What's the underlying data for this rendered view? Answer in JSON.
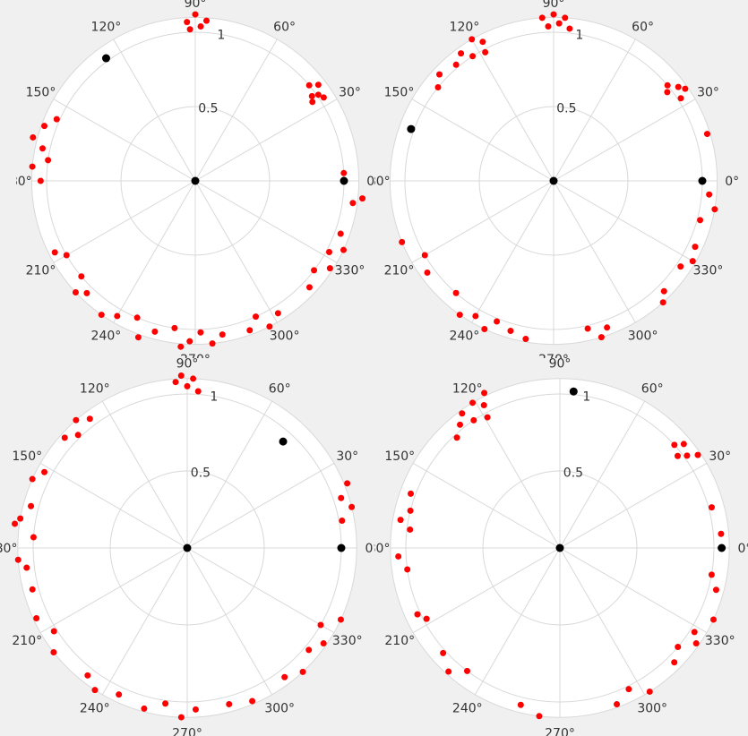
{
  "colors": {
    "background": "#f0f0f0",
    "plot_face": "#ffffff",
    "grid": "#d8d8d8",
    "text": "#333333",
    "cluster_points": "#ff0000",
    "centroid_points": "#000000"
  },
  "chart_data": [
    {
      "type": "scatter",
      "projection": "polar",
      "rlim": [
        0,
        1.1
      ],
      "r_ticks": [
        {
          "value": 0.5,
          "label": "0.5"
        },
        {
          "value": 1,
          "label": "1"
        }
      ],
      "theta_ticks": [
        {
          "deg": 0,
          "label": "0°"
        },
        {
          "deg": 30,
          "label": "30°"
        },
        {
          "deg": 60,
          "label": "60°"
        },
        {
          "deg": 90,
          "label": "90°"
        },
        {
          "deg": 120,
          "label": "120°"
        },
        {
          "deg": 150,
          "label": "150°"
        },
        {
          "deg": 180,
          "label": "180°"
        },
        {
          "deg": 210,
          "label": "210°"
        },
        {
          "deg": 240,
          "label": "240°"
        },
        {
          "deg": 270,
          "label": "270°"
        },
        {
          "deg": 300,
          "label": "300°"
        },
        {
          "deg": 330,
          "label": "330°"
        }
      ],
      "grid": true,
      "series": [
        {
          "role": "cluster",
          "points": [
            {
              "theta": 88,
              "r": 1.04
            },
            {
              "theta": 86,
              "r": 1.08
            },
            {
              "theta": 92,
              "r": 1.02
            },
            {
              "theta": 90,
              "r": 1.12
            },
            {
              "theta": 93,
              "r": 1.07
            },
            {
              "theta": 35,
              "r": 1.01
            },
            {
              "theta": 38,
              "r": 1.05
            },
            {
              "theta": 36,
              "r": 0.97
            },
            {
              "theta": 33,
              "r": 1.03
            },
            {
              "theta": 40,
              "r": 1.0
            },
            {
              "theta": 34,
              "r": 0.95
            },
            {
              "theta": 3,
              "r": 1.0
            },
            {
              "theta": -6,
              "r": 1.13
            },
            {
              "theta": -8,
              "r": 1.07
            },
            {
              "theta": -20,
              "r": 1.04
            },
            {
              "theta": -25,
              "r": 1.1
            },
            {
              "theta": -28,
              "r": 1.02
            },
            {
              "theta": -33,
              "r": 1.08
            },
            {
              "theta": -37,
              "r": 1.0
            },
            {
              "theta": -43,
              "r": 1.05
            },
            {
              "theta": -58,
              "r": 1.05
            },
            {
              "theta": -63,
              "r": 1.1
            },
            {
              "theta": -66,
              "r": 1.0
            },
            {
              "theta": -70,
              "r": 1.07
            },
            {
              "theta": -80,
              "r": 1.05
            },
            {
              "theta": -84,
              "r": 1.1
            },
            {
              "theta": -88,
              "r": 1.02
            },
            {
              "theta": -92,
              "r": 1.08
            },
            {
              "theta": -95,
              "r": 1.12
            },
            {
              "theta": -98,
              "r": 1.0
            },
            {
              "theta": -105,
              "r": 1.05
            },
            {
              "theta": -110,
              "r": 1.12
            },
            {
              "theta": -113,
              "r": 1.0
            },
            {
              "theta": -120,
              "r": 1.05
            },
            {
              "theta": -125,
              "r": 1.1
            },
            {
              "theta": -134,
              "r": 1.05
            },
            {
              "theta": -140,
              "r": 1.0
            },
            {
              "theta": -137,
              "r": 1.1
            },
            {
              "theta": -150,
              "r": 1.0
            },
            {
              "theta": -153,
              "r": 1.06
            },
            {
              "theta": 168,
              "r": 1.05
            },
            {
              "theta": 172,
              "r": 1.0
            },
            {
              "theta": 175,
              "r": 1.1
            },
            {
              "theta": 165,
              "r": 1.13
            },
            {
              "theta": 160,
              "r": 1.08
            },
            {
              "theta": 156,
              "r": 1.02
            },
            {
              "theta": 180,
              "r": 1.04
            }
          ]
        },
        {
          "role": "centroid",
          "points": [
            {
              "theta": 0,
              "r": 0
            },
            {
              "theta": 0,
              "r": 1.0
            },
            {
              "theta": 126,
              "r": 1.02
            }
          ]
        }
      ]
    },
    {
      "type": "scatter",
      "projection": "polar",
      "rlim": [
        0,
        1.1
      ],
      "r_ticks": [
        {
          "value": 0.5,
          "label": "0.5"
        },
        {
          "value": 1,
          "label": "1"
        }
      ],
      "theta_ticks": [
        {
          "deg": 0,
          "label": "0°"
        },
        {
          "deg": 30,
          "label": "30°"
        },
        {
          "deg": 60,
          "label": "60°"
        },
        {
          "deg": 90,
          "label": "90°"
        },
        {
          "deg": 120,
          "label": "120°"
        },
        {
          "deg": 150,
          "label": "150°"
        },
        {
          "deg": 180,
          "label": "180°"
        },
        {
          "deg": 210,
          "label": "210°"
        },
        {
          "deg": 240,
          "label": "240°"
        },
        {
          "deg": 270,
          "label": "270°"
        },
        {
          "deg": 300,
          "label": "300°"
        },
        {
          "deg": 330,
          "label": "330°"
        }
      ],
      "grid": true,
      "series": [
        {
          "role": "cluster",
          "points": [
            {
              "theta": 90,
              "r": 1.12
            },
            {
              "theta": 88,
              "r": 1.06
            },
            {
              "theta": 92,
              "r": 1.04
            },
            {
              "theta": 86,
              "r": 1.1
            },
            {
              "theta": 84,
              "r": 1.03
            },
            {
              "theta": 94,
              "r": 1.1
            },
            {
              "theta": 117,
              "r": 1.05
            },
            {
              "theta": 120,
              "r": 1.1
            },
            {
              "theta": 123,
              "r": 1.0
            },
            {
              "theta": 126,
              "r": 1.06
            },
            {
              "theta": 130,
              "r": 1.02
            },
            {
              "theta": 118,
              "r": 0.98
            },
            {
              "theta": 137,
              "r": 1.05
            },
            {
              "theta": 141,
              "r": 1.0
            },
            {
              "theta": 37,
              "r": 1.05
            },
            {
              "theta": 40,
              "r": 1.0
            },
            {
              "theta": 33,
              "r": 1.02
            },
            {
              "theta": 35,
              "r": 1.08
            },
            {
              "theta": 38,
              "r": 0.97
            },
            {
              "theta": 17,
              "r": 1.08
            },
            {
              "theta": -5,
              "r": 1.05
            },
            {
              "theta": -10,
              "r": 1.1
            },
            {
              "theta": -15,
              "r": 1.02
            },
            {
              "theta": -25,
              "r": 1.05
            },
            {
              "theta": -30,
              "r": 1.08
            },
            {
              "theta": -34,
              "r": 1.03
            },
            {
              "theta": -45,
              "r": 1.05
            },
            {
              "theta": -48,
              "r": 1.1
            },
            {
              "theta": -70,
              "r": 1.05
            },
            {
              "theta": -73,
              "r": 1.1
            },
            {
              "theta": -77,
              "r": 1.02
            },
            {
              "theta": -100,
              "r": 1.08
            },
            {
              "theta": -106,
              "r": 1.05
            },
            {
              "theta": -112,
              "r": 1.02
            },
            {
              "theta": -115,
              "r": 1.1
            },
            {
              "theta": -120,
              "r": 1.05
            },
            {
              "theta": -125,
              "r": 1.1
            },
            {
              "theta": -131,
              "r": 1.0
            },
            {
              "theta": -144,
              "r": 1.05
            },
            {
              "theta": -150,
              "r": 1.0
            },
            {
              "theta": -158,
              "r": 1.1
            }
          ]
        },
        {
          "role": "centroid",
          "points": [
            {
              "theta": 0,
              "r": 0
            },
            {
              "theta": 0,
              "r": 1.0
            },
            {
              "theta": 160,
              "r": 1.02
            }
          ]
        }
      ]
    },
    {
      "type": "scatter",
      "projection": "polar",
      "rlim": [
        0,
        1.1
      ],
      "r_ticks": [
        {
          "value": 0.5,
          "label": "0.5"
        },
        {
          "value": 1,
          "label": "1"
        }
      ],
      "theta_ticks": [
        {
          "deg": 0,
          "label": "0°"
        },
        {
          "deg": 30,
          "label": "30°"
        },
        {
          "deg": 60,
          "label": "60°"
        },
        {
          "deg": 90,
          "label": "90°"
        },
        {
          "deg": 120,
          "label": "120°"
        },
        {
          "deg": 150,
          "label": "150°"
        },
        {
          "deg": 180,
          "label": "180°"
        },
        {
          "deg": 210,
          "label": "210°"
        },
        {
          "deg": 240,
          "label": "240°"
        },
        {
          "deg": 270,
          "label": "270°"
        },
        {
          "deg": 300,
          "label": "300°"
        },
        {
          "deg": 330,
          "label": "330°"
        }
      ],
      "grid": true,
      "series": [
        {
          "role": "cluster",
          "points": [
            {
              "theta": 88,
              "r": 1.1
            },
            {
              "theta": 90,
              "r": 1.05
            },
            {
              "theta": 92,
              "r": 1.12
            },
            {
              "theta": 86,
              "r": 1.02
            },
            {
              "theta": 94,
              "r": 1.08
            },
            {
              "theta": 127,
              "r": 1.05
            },
            {
              "theta": 131,
              "r": 1.1
            },
            {
              "theta": 134,
              "r": 1.02
            },
            {
              "theta": 138,
              "r": 1.07
            },
            {
              "theta": 152,
              "r": 1.05
            },
            {
              "theta": 156,
              "r": 1.1
            },
            {
              "theta": 165,
              "r": 1.05
            },
            {
              "theta": 170,
              "r": 1.1
            },
            {
              "theta": 176,
              "r": 1.0
            },
            {
              "theta": 172,
              "r": 1.13
            },
            {
              "theta": 184,
              "r": 1.1
            },
            {
              "theta": 187,
              "r": 1.05
            },
            {
              "theta": 195,
              "r": 1.04
            },
            {
              "theta": 205,
              "r": 1.08
            },
            {
              "theta": 212,
              "r": 1.02
            },
            {
              "theta": 218,
              "r": 1.1
            },
            {
              "theta": 232,
              "r": 1.05
            },
            {
              "theta": 237,
              "r": 1.1
            },
            {
              "theta": 245,
              "r": 1.05
            },
            {
              "theta": 255,
              "r": 1.08
            },
            {
              "theta": 262,
              "r": 1.02
            },
            {
              "theta": 268,
              "r": 1.1
            },
            {
              "theta": 273,
              "r": 1.05
            },
            {
              "theta": 285,
              "r": 1.05
            },
            {
              "theta": 293,
              "r": 1.08
            },
            {
              "theta": 307,
              "r": 1.05
            },
            {
              "theta": 313,
              "r": 1.1
            },
            {
              "theta": 320,
              "r": 1.03
            },
            {
              "theta": 325,
              "r": 1.08
            },
            {
              "theta": 330,
              "r": 1.0
            },
            {
              "theta": 335,
              "r": 1.1
            },
            {
              "theta": 10,
              "r": 1.02
            },
            {
              "theta": 14,
              "r": 1.1
            },
            {
              "theta": 18,
              "r": 1.05
            },
            {
              "theta": 22,
              "r": 1.12
            }
          ]
        },
        {
          "role": "centroid",
          "points": [
            {
              "theta": 0,
              "r": 0
            },
            {
              "theta": 0,
              "r": 1.0
            },
            {
              "theta": 48,
              "r": 0.93
            }
          ]
        }
      ]
    },
    {
      "type": "scatter",
      "projection": "polar",
      "rlim": [
        0,
        1.1
      ],
      "r_ticks": [
        {
          "value": 0.5,
          "label": "0.5"
        },
        {
          "value": 1,
          "label": "1"
        }
      ],
      "theta_ticks": [
        {
          "deg": 0,
          "label": "0°"
        },
        {
          "deg": 30,
          "label": "30°"
        },
        {
          "deg": 60,
          "label": "60°"
        },
        {
          "deg": 90,
          "label": "90°"
        },
        {
          "deg": 120,
          "label": "120°"
        },
        {
          "deg": 150,
          "label": "150°"
        },
        {
          "deg": 180,
          "label": "180°"
        },
        {
          "deg": 210,
          "label": "210°"
        },
        {
          "deg": 240,
          "label": "240°"
        },
        {
          "deg": 270,
          "label": "270°"
        },
        {
          "deg": 300,
          "label": "300°"
        },
        {
          "deg": 330,
          "label": "330°"
        }
      ],
      "grid": true,
      "series": [
        {
          "role": "cluster",
          "points": [
            {
              "theta": 118,
              "r": 1.05
            },
            {
              "theta": 121,
              "r": 1.1
            },
            {
              "theta": 124,
              "r": 1.0
            },
            {
              "theta": 126,
              "r": 1.08
            },
            {
              "theta": 119,
              "r": 0.97
            },
            {
              "theta": 129,
              "r": 1.03
            },
            {
              "theta": 116,
              "r": 1.12
            },
            {
              "theta": 133,
              "r": 0.98
            },
            {
              "theta": 36,
              "r": 1.02
            },
            {
              "theta": 38,
              "r": 0.97
            },
            {
              "theta": 40,
              "r": 1.05
            },
            {
              "theta": 34,
              "r": 1.08
            },
            {
              "theta": 42,
              "r": 1.0
            },
            {
              "theta": 166,
              "r": 1.0
            },
            {
              "theta": 170,
              "r": 1.05
            },
            {
              "theta": 173,
              "r": 0.98
            },
            {
              "theta": 160,
              "r": 1.03
            },
            {
              "theta": 183,
              "r": 1.05
            },
            {
              "theta": 188,
              "r": 1.0
            },
            {
              "theta": 205,
              "r": 1.02
            },
            {
              "theta": 208,
              "r": 0.98
            },
            {
              "theta": 222,
              "r": 1.02
            },
            {
              "theta": 228,
              "r": 1.08
            },
            {
              "theta": 233,
              "r": 1.0
            },
            {
              "theta": 256,
              "r": 1.05
            },
            {
              "theta": 263,
              "r": 1.1
            },
            {
              "theta": 290,
              "r": 1.08
            },
            {
              "theta": 296,
              "r": 1.02
            },
            {
              "theta": 302,
              "r": 1.1
            },
            {
              "theta": 315,
              "r": 1.05
            },
            {
              "theta": 320,
              "r": 1.0
            },
            {
              "theta": 325,
              "r": 1.08
            },
            {
              "theta": 328,
              "r": 1.03
            },
            {
              "theta": 335,
              "r": 1.1
            },
            {
              "theta": 345,
              "r": 1.05
            },
            {
              "theta": 350,
              "r": 1.0
            },
            {
              "theta": 5,
              "r": 1.05
            },
            {
              "theta": 15,
              "r": 1.02
            }
          ]
        },
        {
          "role": "centroid",
          "points": [
            {
              "theta": 0,
              "r": 0
            },
            {
              "theta": 0,
              "r": 1.05
            },
            {
              "theta": 85,
              "r": 1.02
            }
          ]
        }
      ]
    }
  ]
}
